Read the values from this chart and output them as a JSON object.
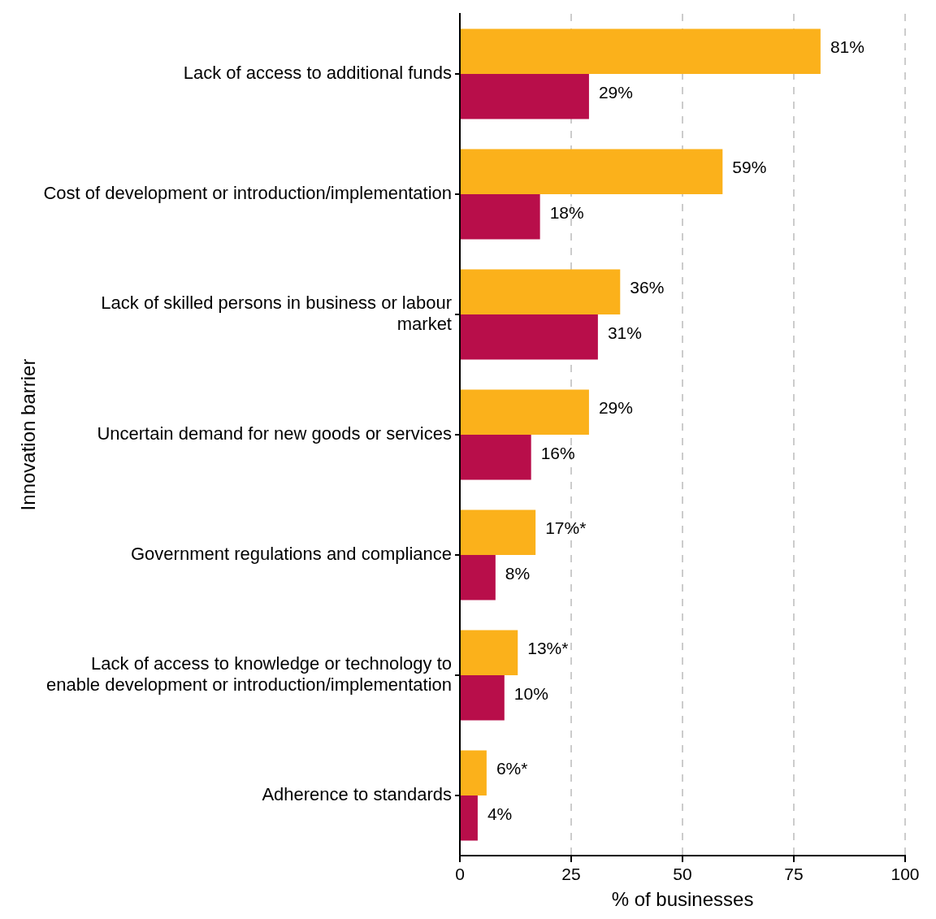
{
  "chart_data": {
    "type": "bar",
    "orientation": "horizontal",
    "xlabel": "% of businesses",
    "ylabel": "Innovation barrier",
    "categories": [
      "Lack of access to additional funds",
      "Cost of development or introduction/implementation",
      "Lack of skilled persons in business or labour\nmarket",
      "Uncertain demand for new goods or services",
      "Government regulations and compliance",
      "Lack of access to knowledge or technology to\nenable development or introduction/implementation",
      "Adherence to standards"
    ],
    "series": [
      {
        "color": "#fbb11b",
        "values": [
          81,
          59,
          36,
          29,
          17,
          13,
          6
        ],
        "value_labels": [
          "81%",
          "59%",
          "36%",
          "29%",
          "17%*",
          "13%*",
          "6%*"
        ]
      },
      {
        "color": "#b80e4a",
        "values": [
          29,
          18,
          31,
          16,
          8,
          10,
          4
        ],
        "value_labels": [
          "29%",
          "18%",
          "31%",
          "16%",
          "8%",
          "10%",
          "4%"
        ]
      }
    ],
    "xlim": [
      0,
      100
    ],
    "xticks": [
      0,
      25,
      50,
      75,
      100
    ],
    "grid": "x",
    "legend": false
  }
}
